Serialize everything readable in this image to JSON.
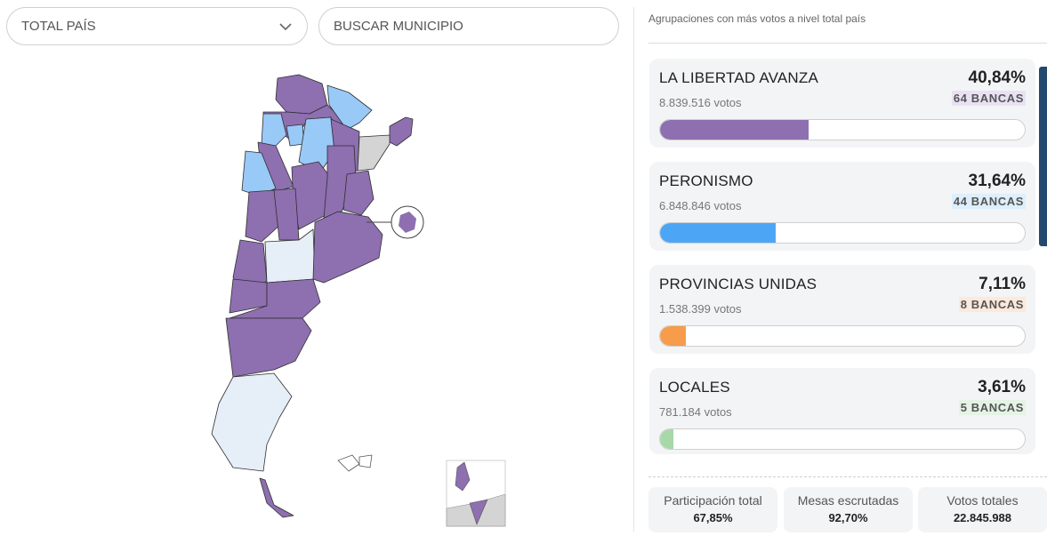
{
  "filters": {
    "region_value": "TOTAL PAÍS",
    "search_placeholder": "BUSCAR MUNICIPIO"
  },
  "results": {
    "subtitle": "Agrupaciones con más votos a nivel total país",
    "parties": [
      {
        "name": "LA LIBERTAD AVANZA",
        "votes": "8.839.516 votos",
        "percent": "40,84%",
        "seats": "64 BANCAS",
        "share": 0.4084,
        "color": "#8e6fb0",
        "seat_bg": "#e9e1f3"
      },
      {
        "name": "PERONISMO",
        "votes": "6.848.846 votos",
        "percent": "31,64%",
        "seats": "44 BANCAS",
        "share": 0.3164,
        "color": "#4da6f5",
        "seat_bg": "#ddeefc"
      },
      {
        "name": "PROVINCIAS UNIDAS",
        "votes": "1.538.399 votos",
        "percent": "7,11%",
        "seats": "8 BANCAS",
        "share": 0.0711,
        "color": "#f79c4a",
        "seat_bg": "#fbe9db"
      },
      {
        "name": "LOCALES",
        "votes": "781.184 votos",
        "percent": "3,61%",
        "seats": "5 BANCAS",
        "share": 0.0361,
        "color": "#a6d8a8",
        "seat_bg": "#e5f3e5"
      }
    ]
  },
  "stats": {
    "participation_label": "Participación total",
    "participation_value": "67,85%",
    "tables_label": "Mesas escrutadas",
    "tables_value": "92,70%",
    "votes_label": "Votos totales",
    "votes_value": "22.845.988"
  },
  "map_colors": {
    "lla": "#8e6fb0",
    "peronismo": "#99c9f7",
    "locales": "#e6eef8",
    "no_data": "#d4d4d4"
  }
}
